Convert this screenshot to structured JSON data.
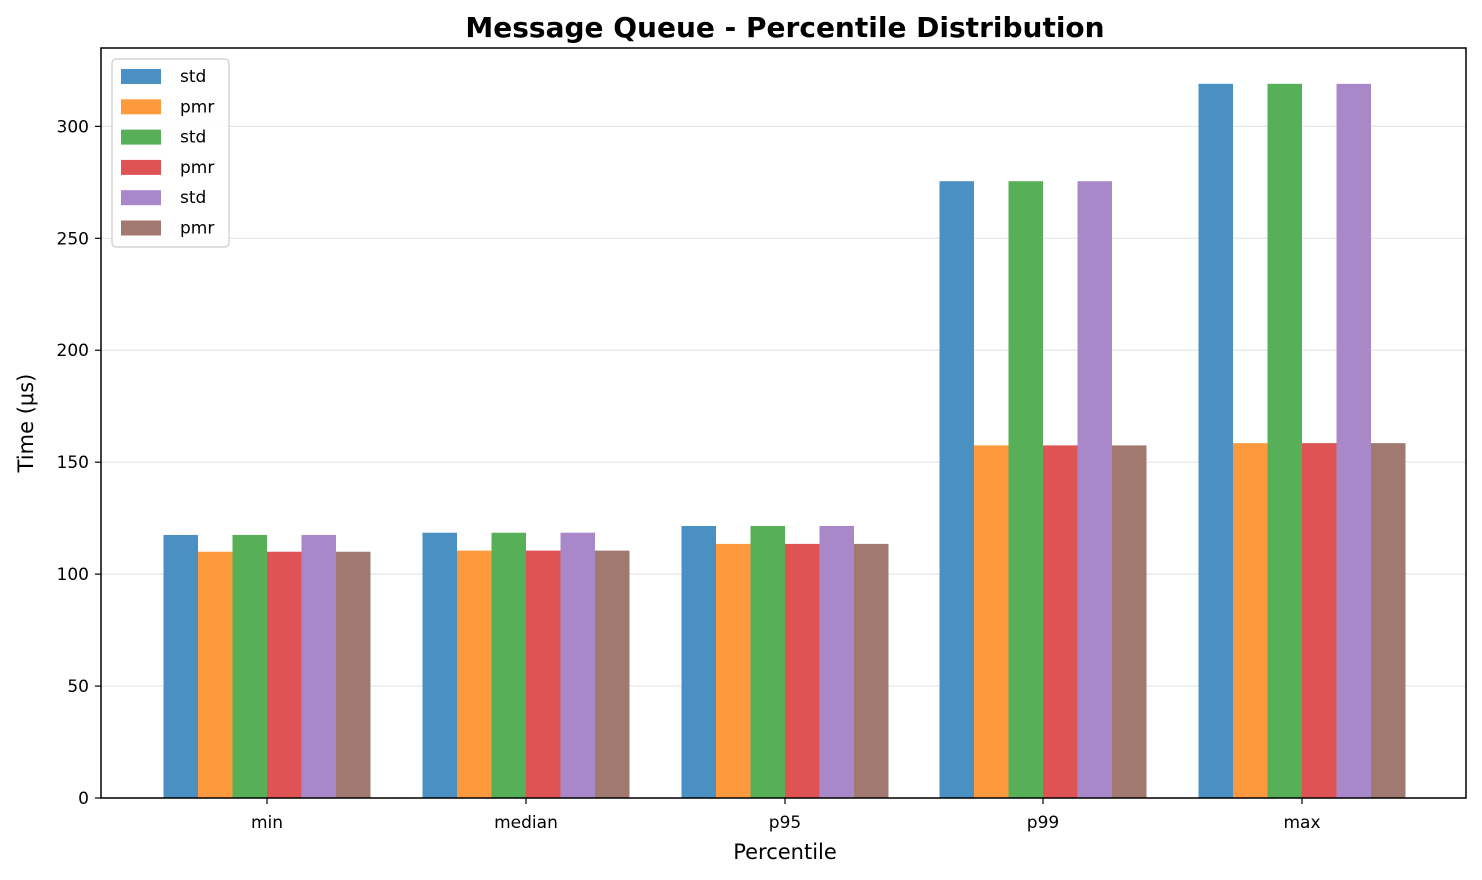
{
  "chart_data": {
    "type": "bar",
    "title": "Message Queue - Percentile Distribution",
    "xlabel": "Percentile",
    "ylabel": "Time (μs)",
    "categories": [
      "min",
      "median",
      "p95",
      "p99",
      "max"
    ],
    "ylim": [
      0,
      335
    ],
    "yticks": [
      0,
      50,
      100,
      150,
      200,
      250,
      300
    ],
    "grid": "y-axis, light gray",
    "legend_position": "top-left",
    "series": [
      {
        "name": "std",
        "color": "#4A90C2",
        "values": [
          117.5,
          118.5,
          121.5,
          275.5,
          319
        ]
      },
      {
        "name": "pmr",
        "color": "#FF993D",
        "values": [
          110,
          110.5,
          113.5,
          157.5,
          158.5
        ]
      },
      {
        "name": "std",
        "color": "#57B057",
        "values": [
          117.5,
          118.5,
          121.5,
          275.5,
          319
        ]
      },
      {
        "name": "pmr",
        "color": "#DF5355",
        "values": [
          110,
          110.5,
          113.5,
          157.5,
          158.5
        ]
      },
      {
        "name": "std",
        "color": "#A988CA",
        "values": [
          117.5,
          118.5,
          121.5,
          275.5,
          319
        ]
      },
      {
        "name": "pmr",
        "color": "#A27970",
        "values": [
          110,
          110.5,
          113.5,
          157.5,
          158.5
        ]
      }
    ]
  }
}
